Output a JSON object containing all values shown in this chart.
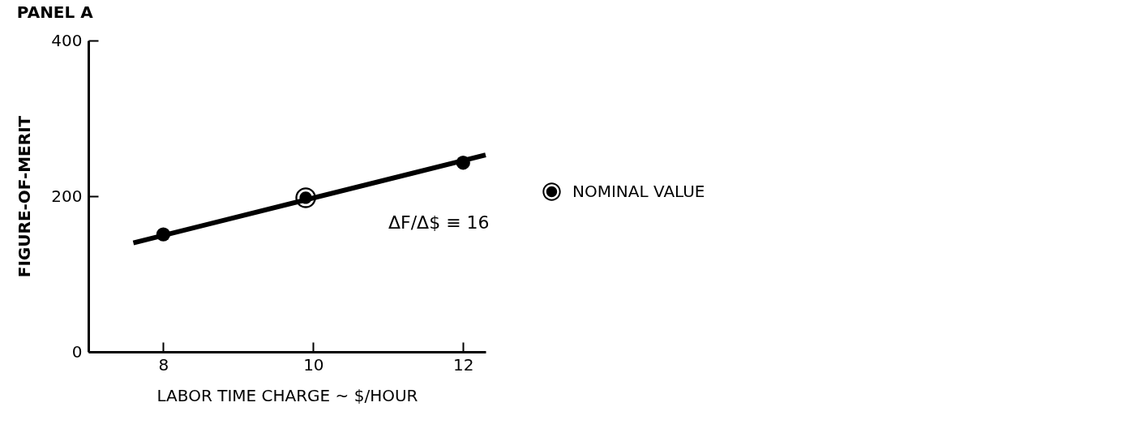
{
  "chart_data": {
    "type": "line",
    "title": "PANEL A",
    "xlabel": "LABOR TIME CHARGE ~ $/HOUR",
    "ylabel": "FIGURE-OF-MERIT",
    "xlim": [
      7,
      12.3
    ],
    "xticks": [
      8,
      10,
      12
    ],
    "ylim": [
      0,
      400
    ],
    "yticks": [
      0,
      200,
      400
    ],
    "grid": false,
    "legend": "right",
    "line_style": "solid",
    "series": [
      {
        "color": "#000000",
        "x": [
          7.6,
          12.3
        ],
        "values": [
          140,
          253
        ],
        "marker": "none"
      },
      {
        "type": "scatter",
        "color": "#000000",
        "x": [
          8,
          12
        ],
        "values": [
          151,
          243
        ],
        "marker": "circle"
      },
      {
        "type": "scatter",
        "name": "NOMINAL VALUE",
        "color": "#000000",
        "x": [
          9.9
        ],
        "values": [
          198
        ],
        "marker": "circle"
      }
    ],
    "annotations": [
      "ΔF/Δ$ ≡ 16"
    ]
  }
}
